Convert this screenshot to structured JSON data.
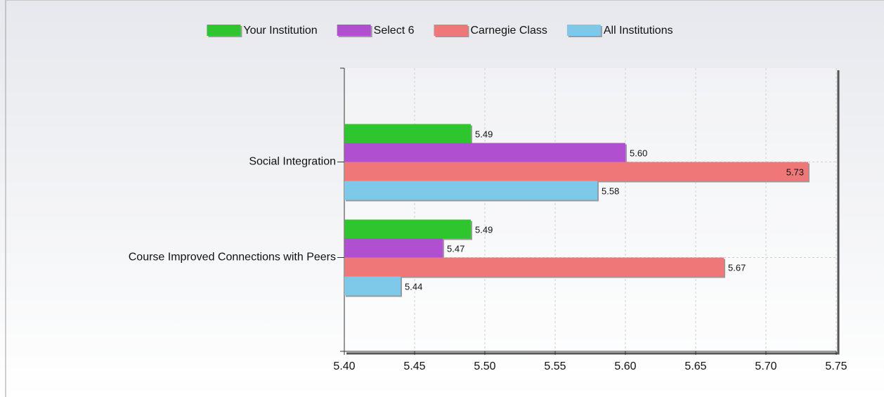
{
  "chart_data": {
    "type": "bar",
    "orientation": "horizontal",
    "categories": [
      "Social Integration",
      "Course Improved Connections with Peers"
    ],
    "series": [
      {
        "name": "Your Institution",
        "color": "#2ec52e",
        "values": [
          5.49,
          5.49
        ],
        "value_labels": [
          "5.49",
          "5.49"
        ]
      },
      {
        "name": "Select 6",
        "color": "#b04fcf",
        "values": [
          5.6,
          5.47
        ],
        "value_labels": [
          "5.60",
          "5.47"
        ]
      },
      {
        "name": "Carnegie Class",
        "color": "#ef7777",
        "values": [
          5.73,
          5.67
        ],
        "value_labels": [
          "5.73",
          "5.67"
        ]
      },
      {
        "name": "All Institutions",
        "color": "#7ec9ea",
        "values": [
          5.58,
          5.44
        ],
        "value_labels": [
          "5.58",
          "5.44"
        ]
      }
    ],
    "xlim": [
      5.4,
      5.75
    ],
    "xticks": [
      {
        "value": 5.4,
        "label": "5.40"
      },
      5.45,
      {
        "value": 5.5,
        "label": "5.50"
      },
      5.55,
      {
        "value": 5.6,
        "label": "5.60"
      },
      5.65,
      {
        "value": 5.7,
        "label": "5.70"
      },
      5.75
    ],
    "grid": true,
    "legend": "top"
  }
}
